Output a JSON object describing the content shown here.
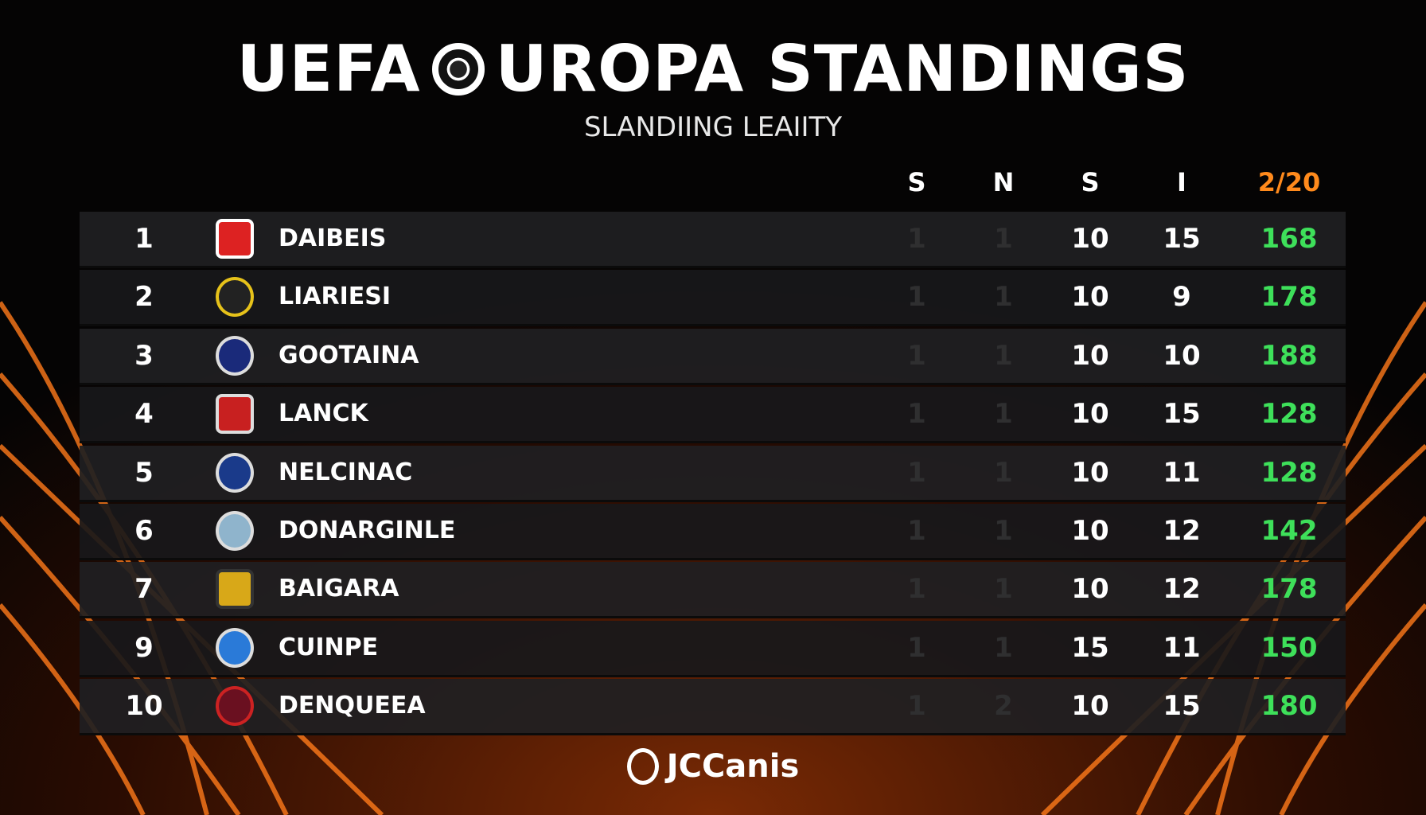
{
  "header": {
    "title_left": "UEFA",
    "title_right": "UROPA STANDINGS",
    "subtitle": "SLANDIING LEAIITY"
  },
  "table": {
    "columns": [
      "S",
      "N",
      "S",
      "I",
      "2/20"
    ],
    "rows": [
      [
        "1",
        "DAIBEIS",
        "1",
        "1",
        "10",
        "15",
        "168"
      ],
      [
        "2",
        "LIARIESI",
        "1",
        "1",
        "10",
        "9",
        "178"
      ],
      [
        "3",
        "GOOTAINA",
        "1",
        "1",
        "10",
        "10",
        "188"
      ],
      [
        "4",
        "LANCK",
        "1",
        "1",
        "10",
        "15",
        "128"
      ],
      [
        "5",
        "NELCINAC",
        "1",
        "1",
        "10",
        "11",
        "128"
      ],
      [
        "6",
        "DONARGINLE",
        "1",
        "1",
        "10",
        "12",
        "142"
      ],
      [
        "7",
        "BAIGARA",
        "1",
        "1",
        "10",
        "12",
        "178"
      ],
      [
        "9",
        "CUINPE",
        "1",
        "1",
        "15",
        "11",
        "150"
      ],
      [
        "10",
        "DENQUEEA",
        "1",
        "2",
        "10",
        "15",
        "180"
      ]
    ]
  },
  "footer": {
    "brand": "JCCanis"
  }
}
